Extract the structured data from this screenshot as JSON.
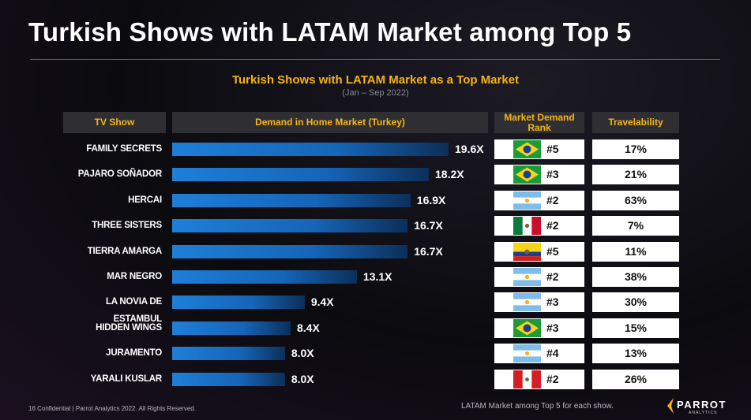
{
  "title": "Turkish Shows with LATAM Market among Top 5",
  "headers": {
    "show": "TV Show",
    "demand": "Demand in Home Market (Turkey)",
    "rank": "Market Demand Rank",
    "travelability": "Travelability"
  },
  "footer": {
    "left": "16  Confidential  |  Parrot Analytics 2022. All Rights Reserved.",
    "note": "LATAM Market among Top 5 for each show.",
    "logo_text": "PARROT",
    "logo_sub": "ANALYTICS"
  },
  "colors": {
    "accent": "#f5b417",
    "bar": "#1e7fd8",
    "header_bg": "#2f2f33"
  },
  "chart_data": {
    "type": "bar",
    "title": "Turkish Shows with LATAM Market as a Top Market",
    "subtitle": "(Jan – Sep 2022)",
    "categories": [
      "FAMILY SECRETS",
      "PAJARO SOÑADOR",
      "HERCAI",
      "THREE SISTERS",
      "TIERRA AMARGA",
      "MAR NEGRO",
      "LA NOVIA DE ESTAMBUL",
      "HIDDEN WINGS",
      "JURAMENTO",
      "YARALI KUSLAR"
    ],
    "values": [
      19.6,
      18.2,
      16.9,
      16.7,
      16.7,
      13.1,
      9.4,
      8.4,
      8.0,
      8.0
    ],
    "value_labels": [
      "19.6X",
      "18.2X",
      "16.9X",
      "16.7X",
      "16.7X",
      "13.1X",
      "9.4X",
      "8.4X",
      "8.0X",
      "8.0X"
    ],
    "market_flag": [
      "brazil-flag-icon",
      "brazil-flag-icon",
      "argentina-flag-icon",
      "mexico-flag-icon",
      "ecuador-flag-icon",
      "argentina-flag-icon",
      "argentina-flag-icon",
      "brazil-flag-icon",
      "argentina-flag-icon",
      "peru-flag-icon"
    ],
    "market_rank": [
      "#5",
      "#3",
      "#2",
      "#2",
      "#5",
      "#2",
      "#3",
      "#3",
      "#4",
      "#2"
    ],
    "travelability": [
      "17%",
      "21%",
      "63%",
      "7%",
      "11%",
      "38%",
      "30%",
      "15%",
      "13%",
      "26%"
    ],
    "xlim": [
      0,
      19.6
    ]
  }
}
